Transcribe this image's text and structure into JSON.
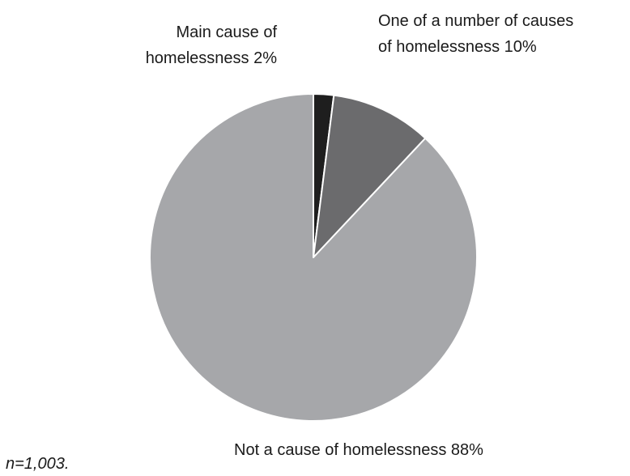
{
  "chart_data": {
    "type": "pie",
    "slices": [
      {
        "label_line1": "Main cause of",
        "label_line2": "homelessness 2%",
        "value": 2,
        "color": "#1e1e1e"
      },
      {
        "label_line1": "One of a number of causes",
        "label_line2": "of homelessness 10%",
        "value": 10,
        "color": "#6b6b6d"
      },
      {
        "label_line1": "Not a cause of homelessness 88%",
        "label_line2": "",
        "value": 88,
        "color": "#a6a7aa"
      }
    ],
    "start_angle": "12 o'clock",
    "direction": "clockwise",
    "edge_color": "#ffffff"
  },
  "footnote": "n=1,003."
}
